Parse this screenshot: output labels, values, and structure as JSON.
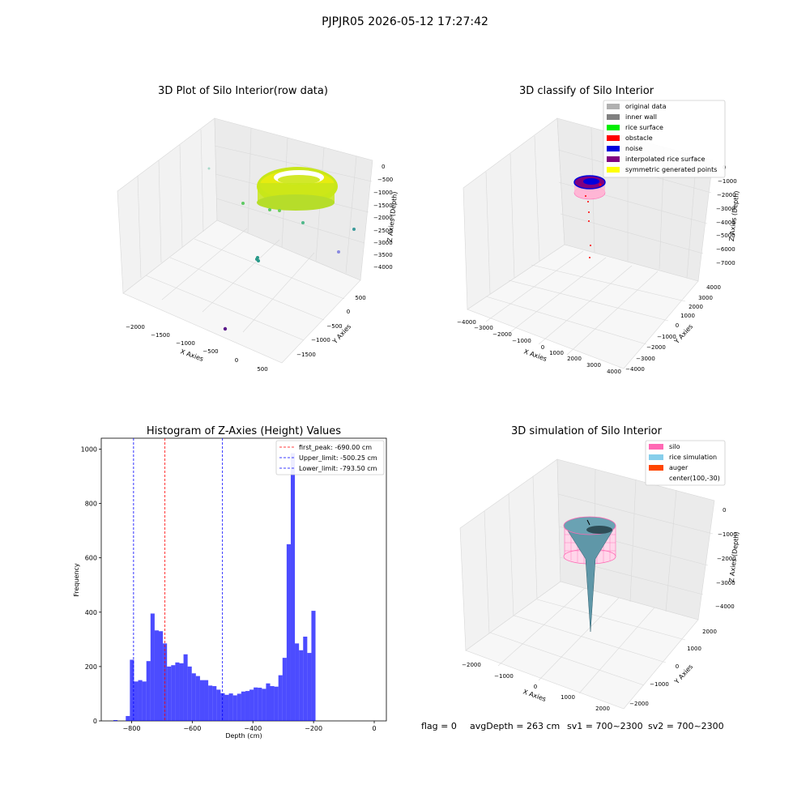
{
  "suptitle": "PJPJR05 2026-05-12 17:27:42",
  "panels": {
    "raw": {
      "title": "3D Plot of Silo Interior(row data)",
      "xlabel": "X Axies",
      "ylabel": "Y Axies",
      "zlabel": "Z Axies (Depth)",
      "xticks": [
        "−2000",
        "−1500",
        "−1000",
        "−500",
        "0",
        "500"
      ],
      "yticks": [
        "500",
        "0",
        "−500",
        "−1000",
        "−1500"
      ],
      "zticks": [
        "0",
        "−500",
        "−1000",
        "−1500",
        "−2000",
        "−2500",
        "−3000",
        "−3500",
        "−4000"
      ]
    },
    "classify": {
      "title": "3D classify of Silo Interior",
      "xlabel": "X Axies",
      "ylabel": "Y Axies",
      "zlabel": "Z Axies (Depth)",
      "xticks": [
        "−4000",
        "−3000",
        "−2000",
        "−1000",
        "0",
        "1000",
        "2000",
        "3000",
        "4000"
      ],
      "yticks": [
        "4000",
        "3000",
        "2000",
        "1000",
        "0",
        "−1000",
        "−2000",
        "−3000",
        "−4000"
      ],
      "zticks": [
        "0",
        "−1000",
        "−2000",
        "−3000",
        "−4000",
        "−5000",
        "−6000",
        "−7000"
      ],
      "legend": [
        {
          "label": "original data",
          "color": "#b0b0b0"
        },
        {
          "label": "inner wall",
          "color": "#808080"
        },
        {
          "label": "rice surface",
          "color": "#00ee00"
        },
        {
          "label": "obstacle",
          "color": "#ff0000"
        },
        {
          "label": "noise",
          "color": "#0000dd"
        },
        {
          "label": "interpolated rice surface",
          "color": "#800080"
        },
        {
          "label": "symmetric generated points",
          "color": "#ffff00"
        }
      ]
    },
    "simulation": {
      "title": "3D simulation of Silo Interior",
      "xlabel": "X Axies",
      "ylabel": "Y Axies",
      "zlabel": "Z Axies (Depth)",
      "xticks": [
        "−2000",
        "−1000",
        "0",
        "1000",
        "2000"
      ],
      "yticks": [
        "2000",
        "1000",
        "0",
        "−1000",
        "−2000"
      ],
      "zticks": [
        "0",
        "−1000",
        "−2000",
        "−3000",
        "−4000"
      ],
      "legend": [
        {
          "label": "silo",
          "color": "#ff69b4"
        },
        {
          "label": "rice simulation",
          "color": "#87ceeb"
        },
        {
          "label": "auger",
          "color": "#ff4500"
        },
        {
          "label": "center(100,-30)",
          "color": null
        }
      ]
    }
  },
  "status": {
    "flag": "flag = 0",
    "avgdepth": "avgDepth = 263 cm",
    "sv1": "sv1 = 700~2300",
    "sv2": "sv2 = 700~2300"
  },
  "chart_data": {
    "type": "bar",
    "title": "Histogram of Z-Axies (Height) Values",
    "xlabel": "Depth (cm)",
    "ylabel": "Frequency",
    "xlim": [
      -900,
      40
    ],
    "ylim": [
      0,
      1040
    ],
    "xticks": [
      -800,
      -600,
      -400,
      -200,
      0
    ],
    "yticks": [
      0,
      200,
      400,
      600,
      800,
      1000
    ],
    "bin_edges_start": -860,
    "bin_width": 13.6,
    "values": [
      3,
      0,
      0,
      18,
      225,
      145,
      150,
      145,
      220,
      395,
      333,
      330,
      285,
      200,
      205,
      215,
      212,
      245,
      200,
      175,
      165,
      150,
      150,
      130,
      128,
      115,
      102,
      96,
      101,
      94,
      100,
      108,
      110,
      115,
      123,
      122,
      118,
      138,
      128,
      126,
      168,
      232,
      650,
      985,
      285,
      260,
      310,
      250,
      405
    ],
    "bar_color": "#0000ff",
    "lines": [
      {
        "label": "first_peak: -690.00 cm",
        "x": -690.0,
        "color": "#ff0000"
      },
      {
        "label": "Upper_limit: -500.25 cm",
        "x": -500.25,
        "color": "#0000ff"
      },
      {
        "label": "Lower_limit: -793.50 cm",
        "x": -793.5,
        "color": "#0000ff"
      }
    ],
    "legend_loc": "upper right"
  }
}
